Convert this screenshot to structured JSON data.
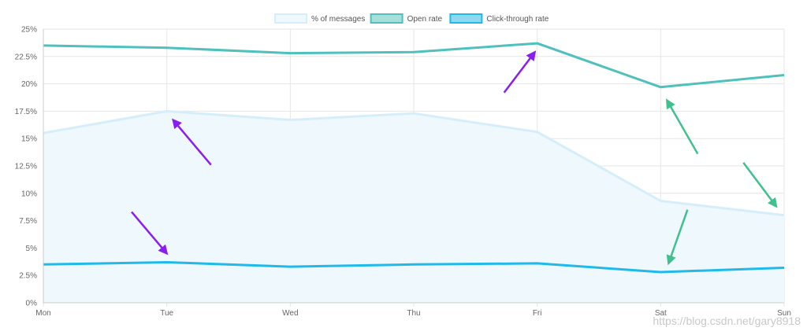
{
  "chart_data": {
    "type": "line",
    "categories": [
      "Mon",
      "Tue",
      "Wed",
      "Thu",
      "Fri",
      "Sat",
      "Sun"
    ],
    "ylim": [
      0,
      25
    ],
    "y_ticks": [
      "0%",
      "2.5%",
      "5%",
      "7.5%",
      "10%",
      "12.5%",
      "15%",
      "17.5%",
      "20%",
      "22.5%",
      "25%"
    ],
    "y_tick_values": [
      0,
      2.5,
      5,
      7.5,
      10,
      12.5,
      15,
      17.5,
      20,
      22.5,
      25
    ],
    "grid": true,
    "legend_position": "top",
    "series": [
      {
        "name": "% of messages",
        "style": "area",
        "color": "#d6eefa",
        "fill": "#eef8fd",
        "values": [
          15.5,
          17.5,
          16.7,
          17.3,
          15.6,
          9.3,
          8.0
        ]
      },
      {
        "name": "Open rate",
        "style": "line",
        "color": "#4fc0bb",
        "fill": "#a9dfdb",
        "values": [
          23.5,
          23.3,
          22.8,
          22.9,
          23.7,
          19.7,
          20.8
        ]
      },
      {
        "name": "Click-through rate",
        "style": "line",
        "color": "#1fb9ea",
        "fill": "#8fd8f2",
        "values": [
          3.5,
          3.7,
          3.3,
          3.5,
          3.6,
          2.8,
          3.2
        ]
      }
    ],
    "annotations": [
      {
        "kind": "arrow",
        "color": "#8a1ef0",
        "from": [
          "Mon",
          8.3
        ],
        "to": [
          "Tue",
          4.5
        ]
      },
      {
        "kind": "arrow",
        "color": "#8a1ef0",
        "from": [
          "Tue",
          12.6
        ],
        "to": [
          "Tue",
          16.7
        ]
      },
      {
        "kind": "arrow",
        "color": "#8a1ef0",
        "from": [
          "Fri",
          19.2
        ],
        "to": [
          "Fri",
          22.9
        ]
      },
      {
        "kind": "arrow",
        "color": "#40c08e",
        "from": [
          "Sat",
          13.6
        ],
        "to": [
          "Sat",
          18.5
        ]
      },
      {
        "kind": "arrow",
        "color": "#40c08e",
        "from": [
          "Sat",
          8.5
        ],
        "to": [
          "Sat",
          3.6
        ]
      },
      {
        "kind": "arrow",
        "color": "#40c08e",
        "from": [
          "Sat",
          12.8
        ],
        "to": [
          "Sun",
          8.8
        ]
      }
    ]
  },
  "watermark": "https://blog.csdn.net/gary8918"
}
